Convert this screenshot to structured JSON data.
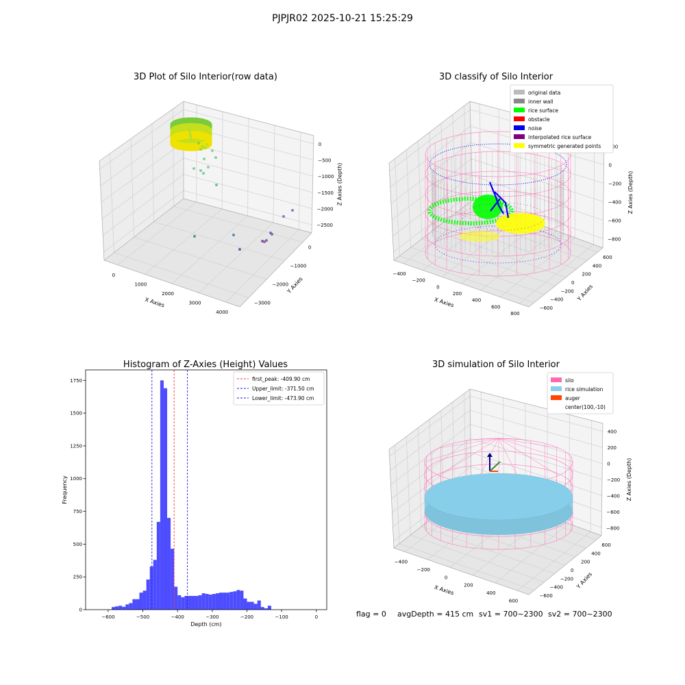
{
  "suptitle": "PJPJR02 2025-10-21 15:25:29",
  "footer": {
    "flag": "flag = 0",
    "avg": "avgDepth = 415 cm",
    "sv1": "sv1 = 700~2300",
    "sv2": "sv2 = 700~2300"
  },
  "colors": {
    "bar": "#4d4dff",
    "peak_line": "#ff3333",
    "limit_line": "#1f1fe0",
    "silo": "#ff69b4",
    "rice_sim": "#87ceeb",
    "auger": "#ff4500",
    "original": "#bbbbbb",
    "inner_wall": "#888888",
    "rice_surface": "#00ff00",
    "obstacle": "#ff0000",
    "noise": "#0000ee",
    "interpolated": "#800080",
    "symmetric": "#ffff00"
  },
  "chart_data": [
    {
      "type": "scatter",
      "title": "3D Plot of Silo Interior(row data)",
      "xlabel": "X Axies",
      "ylabel": "Y Axies",
      "zlabel": "Z Axies (Depth)",
      "x_ticks": [
        "0",
        "1000",
        "2000",
        "3000",
        "4000"
      ],
      "y_ticks": [
        "−3000",
        "−2000",
        "−1000",
        "0"
      ],
      "z_ticks": [
        "−2500",
        "−2000",
        "−1500",
        "−1000",
        "−500",
        "0"
      ]
    },
    {
      "type": "scatter",
      "title": "3D classify of Silo Interior",
      "xlabel": "X Axies",
      "ylabel": "Y Axies",
      "zlabel": "Z Axies (Depth)",
      "x_ticks": [
        "−400",
        "−200",
        "0",
        "200",
        "400",
        "600",
        "800"
      ],
      "y_ticks": [
        "−600",
        "−400",
        "−200",
        "0",
        "200",
        "400",
        "600"
      ],
      "z_ticks": [
        "−800",
        "−600",
        "−400",
        "−200",
        "0",
        "200"
      ],
      "legend": [
        "original data",
        "inner wall",
        "rice surface",
        "obstacle",
        "noise",
        "interpolated rice surface",
        "symmetric generated points"
      ]
    },
    {
      "type": "bar",
      "title": "Histogram of Z-Axies (Height) Values",
      "xlabel": "Depth (cm)",
      "ylabel": "Frequency",
      "xlim": [
        -665,
        30
      ],
      "ylim": [
        0,
        1830
      ],
      "x_ticks": [
        -600,
        -500,
        -400,
        -300,
        -200,
        -100,
        0
      ],
      "y_ticks": [
        0,
        250,
        500,
        750,
        1000,
        1250,
        1500,
        1750
      ],
      "bin_start": -590,
      "bin_width": 10,
      "values": [
        20,
        25,
        30,
        22,
        40,
        50,
        80,
        80,
        130,
        145,
        230,
        330,
        380,
        670,
        1750,
        1690,
        700,
        465,
        175,
        110,
        95,
        105,
        105,
        105,
        105,
        110,
        125,
        120,
        115,
        120,
        125,
        130,
        130,
        130,
        135,
        140,
        150,
        145,
        85,
        60,
        60,
        45,
        70,
        20,
        10,
        30
      ],
      "vlines": [
        {
          "name": "first_peak: -409.90 cm",
          "x": -409.9,
          "style": "peak"
        },
        {
          "name": "Upper_limit: -371.50 cm",
          "x": -371.5,
          "style": "limit"
        },
        {
          "name": "Lower_limit: -473.90 cm",
          "x": -473.9,
          "style": "limit"
        }
      ]
    },
    {
      "type": "scatter",
      "title": "3D simulation of Silo Interior",
      "xlabel": "X Axies",
      "ylabel": "Y Axies",
      "zlabel": "Z Axies (Depth)",
      "x_ticks": [
        "−400",
        "−200",
        "0",
        "200",
        "400",
        "600"
      ],
      "y_ticks": [
        "−600",
        "−400",
        "−200",
        "0",
        "200",
        "400",
        "600"
      ],
      "z_ticks": [
        "−800",
        "−600",
        "−400",
        "−200",
        "0",
        "200",
        "400"
      ],
      "legend": [
        "silo",
        "rice simulation",
        "auger",
        "center(100,-10)"
      ]
    }
  ]
}
